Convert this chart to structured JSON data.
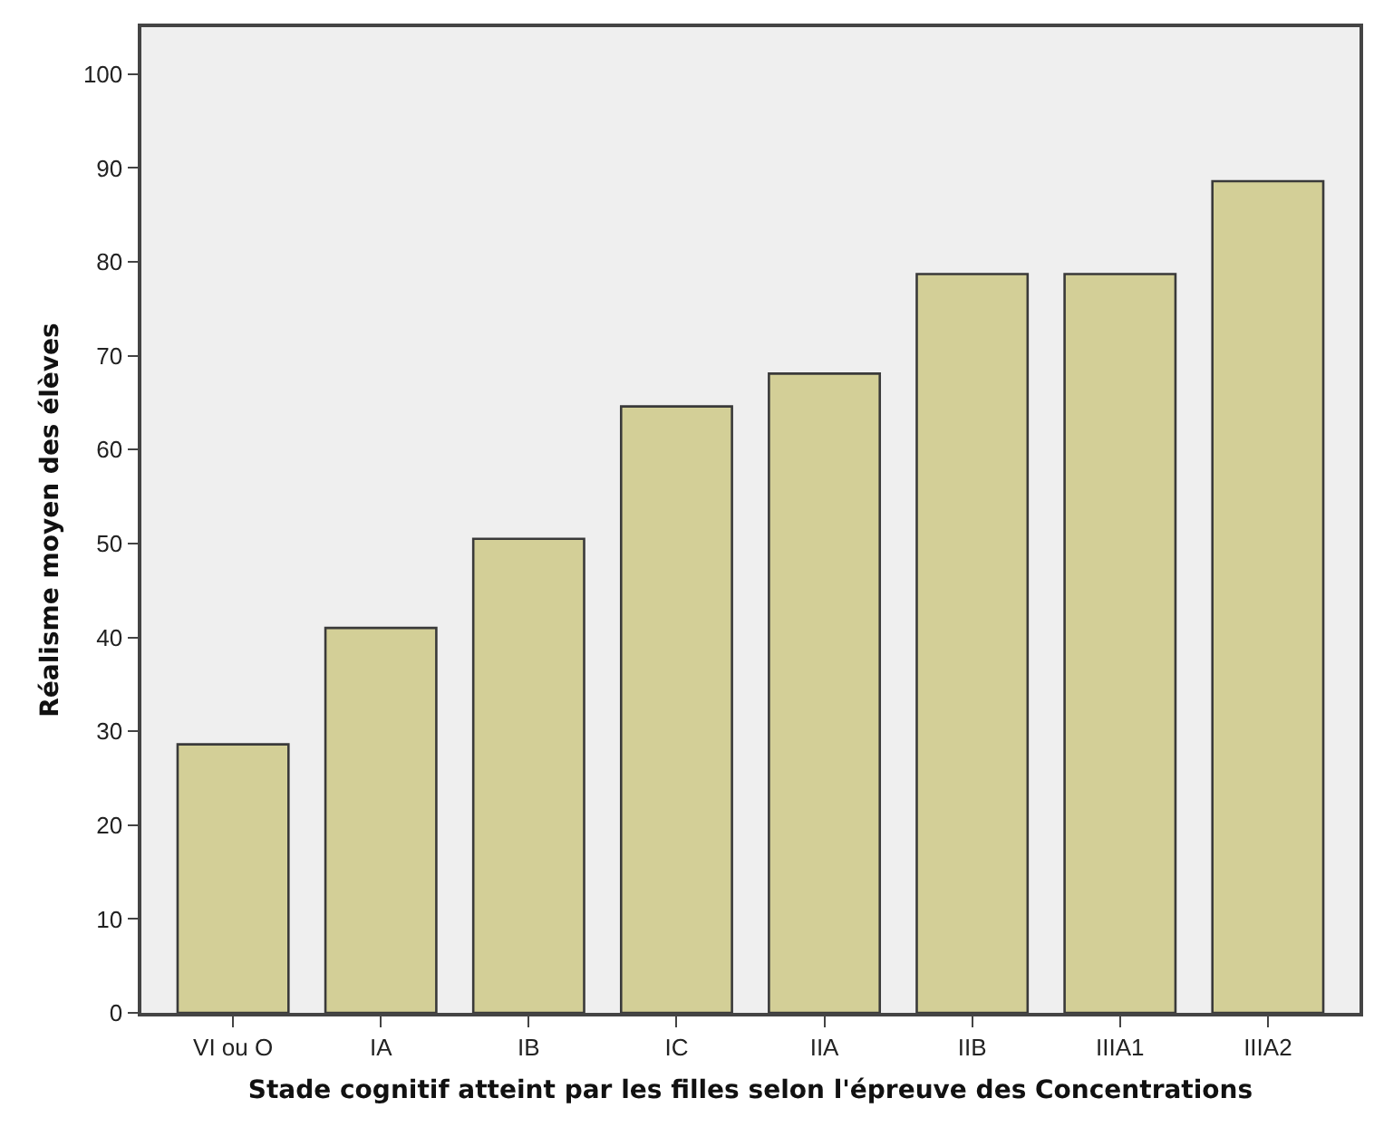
{
  "chart_data": {
    "type": "bar",
    "xlabel": "Stade cognitif atteint par les filles selon l'épreuve des Concentrations",
    "ylabel": "Réalisme moyen des élèves",
    "categories": [
      "VI ou O",
      "IA",
      "IB",
      "IC",
      "IIA",
      "IIB",
      "IIIA1",
      "IIIA2"
    ],
    "values": [
      28.6,
      41.0,
      50.5,
      64.6,
      68.1,
      78.7,
      78.7,
      88.6
    ],
    "color": "#d3cf97",
    "ylim": [
      0,
      105
    ],
    "yticks": [
      0,
      10,
      20,
      30,
      40,
      50,
      60,
      70,
      80,
      90,
      100
    ],
    "grid": false,
    "legend": false
  }
}
